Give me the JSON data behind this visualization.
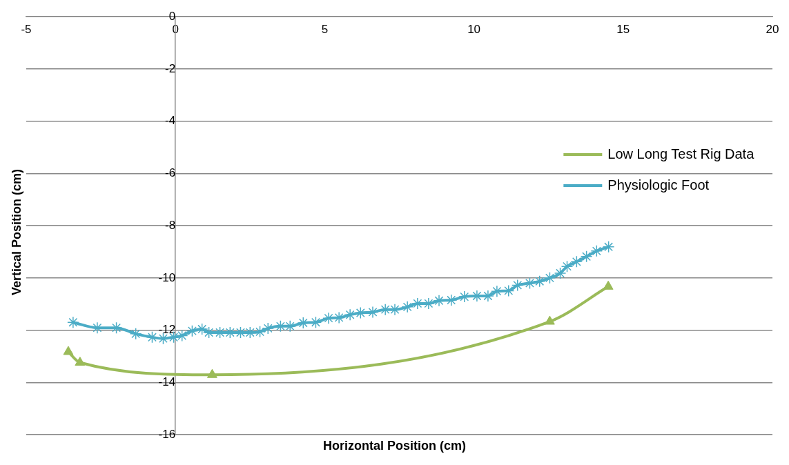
{
  "chart_data": {
    "type": "line",
    "xlabel": "Horizontal Position (cm)",
    "ylabel": "Vertical Position (cm)",
    "xlim": [
      -5,
      20
    ],
    "xticks": [
      -5,
      0,
      5,
      10,
      15,
      20
    ],
    "ylim": [
      -16,
      0
    ],
    "yticks": [
      -16,
      -14,
      -12,
      -10,
      -8,
      -6,
      -4,
      -2,
      0
    ],
    "grid": "y",
    "legend": "right",
    "line_style": "solid",
    "series": [
      {
        "name": "Low Long Test Rig Data",
        "color": "#9bbb59",
        "marker": "triangle",
        "x": [
          -3.59,
          -3.2,
          1.23,
          12.54,
          14.5
        ],
        "values": [
          -12.83,
          -13.24,
          -13.71,
          -11.67,
          -10.33
        ]
      },
      {
        "name": "Physiologic Foot",
        "color": "#4bacc6",
        "marker": "cross",
        "x": [
          -3.43,
          -2.62,
          -1.98,
          -1.33,
          -0.78,
          -0.41,
          -0.06,
          0.22,
          0.56,
          0.89,
          1.12,
          1.49,
          1.83,
          2.18,
          2.5,
          2.83,
          3.1,
          3.52,
          3.84,
          4.28,
          4.7,
          5.13,
          5.48,
          5.85,
          6.2,
          6.61,
          7.03,
          7.35,
          7.77,
          8.11,
          8.48,
          8.83,
          9.24,
          9.68,
          10.1,
          10.47,
          10.77,
          11.16,
          11.46,
          11.87,
          12.2,
          12.54,
          12.89,
          13.12,
          13.44,
          13.77,
          14.11,
          14.51
        ],
        "values": [
          -11.7,
          -11.91,
          -11.91,
          -12.14,
          -12.27,
          -12.32,
          -12.27,
          -12.21,
          -12.03,
          -11.96,
          -12.09,
          -12.09,
          -12.09,
          -12.09,
          -12.09,
          -12.06,
          -11.93,
          -11.85,
          -11.85,
          -11.72,
          -11.7,
          -11.54,
          -11.52,
          -11.41,
          -11.34,
          -11.31,
          -11.21,
          -11.21,
          -11.11,
          -10.98,
          -10.98,
          -10.87,
          -10.85,
          -10.72,
          -10.69,
          -10.69,
          -10.51,
          -10.49,
          -10.28,
          -10.2,
          -10.13,
          -10.0,
          -9.82,
          -9.56,
          -9.38,
          -9.18,
          -8.97,
          -8.81
        ]
      }
    ]
  }
}
